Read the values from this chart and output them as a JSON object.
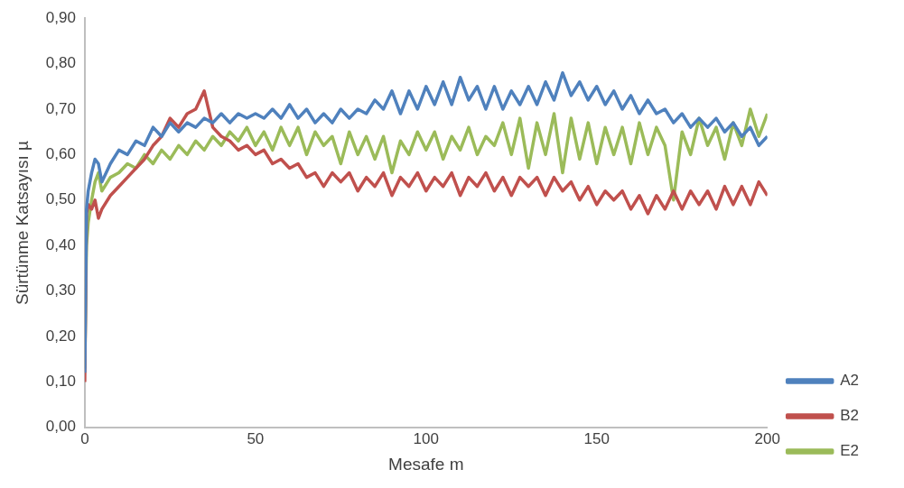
{
  "chart_data": {
    "type": "line",
    "xlabel": "Mesafe m",
    "ylabel": "Sürtünme Katsayısı µ",
    "x": [
      0,
      0.5,
      1,
      2,
      3,
      4,
      5,
      7.5,
      10,
      12.5,
      15,
      17.5,
      20,
      22.5,
      25,
      27.5,
      30,
      32.5,
      35,
      37.5,
      40,
      42.5,
      45,
      47.5,
      50,
      52.5,
      55,
      57.5,
      60,
      62.5,
      65,
      67.5,
      70,
      72.5,
      75,
      77.5,
      80,
      82.5,
      85,
      87.5,
      90,
      92.5,
      95,
      97.5,
      100,
      102.5,
      105,
      107.5,
      110,
      112.5,
      115,
      117.5,
      120,
      122.5,
      125,
      127.5,
      130,
      132.5,
      135,
      137.5,
      140,
      142.5,
      145,
      147.5,
      150,
      152.5,
      155,
      157.5,
      160,
      162.5,
      165,
      167.5,
      170,
      172.5,
      175,
      177.5,
      180,
      182.5,
      185,
      187.5,
      190,
      192.5,
      195,
      197.5,
      200
    ],
    "series": [
      {
        "name": "A2",
        "color": "#4f81bd",
        "values": [
          0.12,
          0.48,
          0.52,
          0.56,
          0.59,
          0.58,
          0.54,
          0.58,
          0.61,
          0.6,
          0.63,
          0.62,
          0.66,
          0.64,
          0.67,
          0.65,
          0.67,
          0.66,
          0.68,
          0.67,
          0.69,
          0.67,
          0.69,
          0.68,
          0.69,
          0.68,
          0.7,
          0.68,
          0.71,
          0.68,
          0.7,
          0.67,
          0.69,
          0.67,
          0.7,
          0.68,
          0.7,
          0.69,
          0.72,
          0.7,
          0.74,
          0.69,
          0.74,
          0.7,
          0.75,
          0.71,
          0.76,
          0.71,
          0.77,
          0.72,
          0.75,
          0.7,
          0.75,
          0.7,
          0.74,
          0.71,
          0.75,
          0.71,
          0.76,
          0.72,
          0.78,
          0.73,
          0.76,
          0.72,
          0.75,
          0.71,
          0.74,
          0.7,
          0.73,
          0.69,
          0.72,
          0.69,
          0.7,
          0.67,
          0.69,
          0.66,
          0.68,
          0.66,
          0.68,
          0.65,
          0.67,
          0.64,
          0.66,
          0.62,
          0.64
        ]
      },
      {
        "name": "B2",
        "color": "#c0504d",
        "values": [
          0.1,
          0.47,
          0.49,
          0.48,
          0.5,
          0.46,
          0.48,
          0.51,
          0.53,
          0.55,
          0.57,
          0.59,
          0.62,
          0.64,
          0.68,
          0.66,
          0.69,
          0.7,
          0.74,
          0.66,
          0.64,
          0.63,
          0.61,
          0.62,
          0.6,
          0.61,
          0.58,
          0.59,
          0.57,
          0.58,
          0.55,
          0.56,
          0.53,
          0.56,
          0.54,
          0.56,
          0.52,
          0.55,
          0.53,
          0.56,
          0.51,
          0.55,
          0.53,
          0.56,
          0.52,
          0.55,
          0.53,
          0.56,
          0.51,
          0.55,
          0.53,
          0.56,
          0.52,
          0.55,
          0.51,
          0.55,
          0.53,
          0.55,
          0.51,
          0.55,
          0.52,
          0.54,
          0.5,
          0.53,
          0.49,
          0.52,
          0.5,
          0.52,
          0.48,
          0.51,
          0.47,
          0.51,
          0.48,
          0.52,
          0.48,
          0.52,
          0.49,
          0.52,
          0.48,
          0.53,
          0.49,
          0.53,
          0.49,
          0.54,
          0.51
        ]
      },
      {
        "name": "E2",
        "color": "#9bbb59",
        "values": [
          0.13,
          0.4,
          0.45,
          0.5,
          0.54,
          0.56,
          0.52,
          0.55,
          0.56,
          0.58,
          0.57,
          0.6,
          0.58,
          0.61,
          0.59,
          0.62,
          0.6,
          0.63,
          0.61,
          0.64,
          0.62,
          0.65,
          0.63,
          0.66,
          0.62,
          0.65,
          0.61,
          0.66,
          0.62,
          0.66,
          0.6,
          0.65,
          0.62,
          0.64,
          0.58,
          0.65,
          0.6,
          0.64,
          0.59,
          0.64,
          0.56,
          0.63,
          0.6,
          0.65,
          0.61,
          0.65,
          0.59,
          0.64,
          0.61,
          0.66,
          0.6,
          0.64,
          0.62,
          0.67,
          0.6,
          0.68,
          0.57,
          0.67,
          0.6,
          0.69,
          0.56,
          0.68,
          0.59,
          0.67,
          0.58,
          0.66,
          0.6,
          0.66,
          0.58,
          0.67,
          0.6,
          0.66,
          0.62,
          0.5,
          0.65,
          0.6,
          0.68,
          0.62,
          0.66,
          0.59,
          0.67,
          0.62,
          0.7,
          0.64,
          0.69
        ]
      }
    ],
    "xlim": [
      0,
      200
    ],
    "xticks": [
      0,
      50,
      100,
      150,
      200
    ],
    "ylim": [
      0,
      0.9
    ],
    "yticks": [
      {
        "value": 0,
        "label": "0,00"
      },
      {
        "value": 0.1,
        "label": "0,10"
      },
      {
        "value": 0.2,
        "label": "0,20"
      },
      {
        "value": 0.3,
        "label": "0,30"
      },
      {
        "value": 0.4,
        "label": "0,40"
      },
      {
        "value": 0.5,
        "label": "0,50"
      },
      {
        "value": 0.6,
        "label": "0,60"
      },
      {
        "value": 0.7,
        "label": "0,70"
      },
      {
        "value": 0.8,
        "label": "0,80"
      },
      {
        "value": 0.9,
        "label": "0,90"
      }
    ],
    "legend": "right",
    "grid": false,
    "marker": "none",
    "line_style": "solid"
  }
}
